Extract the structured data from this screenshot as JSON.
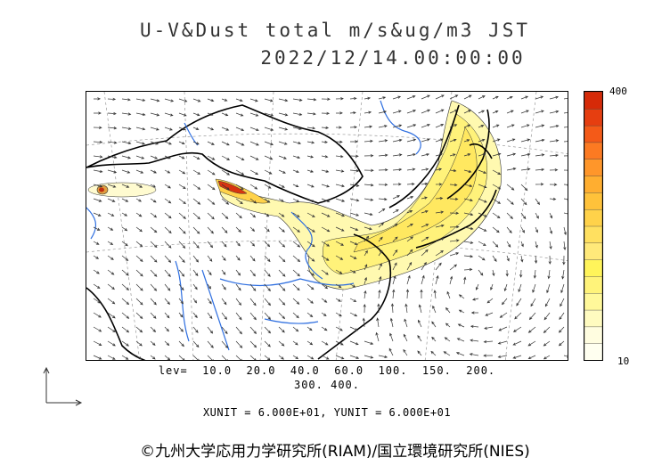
{
  "title": "U-V&Dust total m/s&ug/m3 JST",
  "datetime": "2022/12/14.00:00:00",
  "colorbar": {
    "max_label": "400",
    "min_label": "10",
    "colors": [
      "#fffff0",
      "#fffde0",
      "#fffbc0",
      "#fff89a",
      "#fff37a",
      "#fff45a",
      "#ffe97a",
      "#ffe060",
      "#ffd24a",
      "#ffc23a",
      "#ffae30",
      "#ff962a",
      "#fc7a22",
      "#f45a18",
      "#e63e10",
      "#d62a08"
    ]
  },
  "levels": {
    "line1": "lev=  10.0  20.0  40.0  60.0  100.  150.  200.",
    "line2": "300.  400."
  },
  "units": "XUNIT = 6.000E+01, YUNIT = 6.000E+01",
  "credit": "©九州大学応用力学研究所(RIAM)/国立環境研究所(NIES)",
  "map": {
    "plume_color": "#ffef66",
    "source_color": "#d83410",
    "coast_color": "#000000",
    "river_color": "#2f6fe0"
  }
}
